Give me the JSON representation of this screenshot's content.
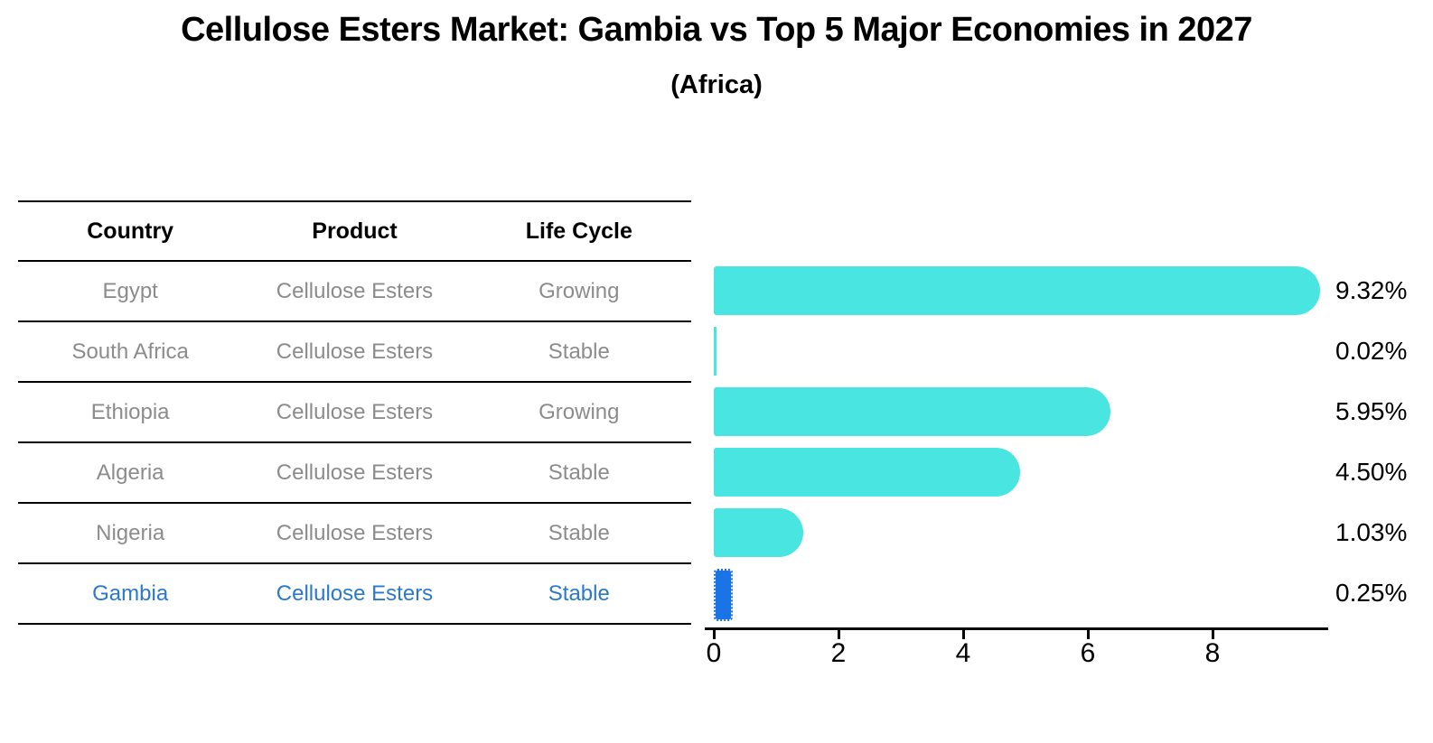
{
  "page": {
    "title": "Cellulose Esters Market: Gambia vs Top 5 Major Economies in 2027",
    "subtitle": "(Africa)"
  },
  "table": {
    "headers": [
      "Country",
      "Product",
      "Life Cycle"
    ],
    "rows": [
      {
        "country": "Egypt",
        "product": "Cellulose Esters",
        "life_cycle": "Growing"
      },
      {
        "country": "South Africa",
        "product": "Cellulose Esters",
        "life_cycle": "Stable"
      },
      {
        "country": "Ethiopia",
        "product": "Cellulose Esters",
        "life_cycle": "Growing"
      },
      {
        "country": "Algeria",
        "product": "Cellulose Esters",
        "life_cycle": "Stable"
      },
      {
        "country": "Nigeria",
        "product": "Cellulose Esters",
        "life_cycle": "Stable"
      },
      {
        "country": "Gambia",
        "product": "Cellulose Esters",
        "life_cycle": "Stable"
      }
    ]
  },
  "chart_data": {
    "type": "bar",
    "orientation": "horizontal",
    "title": "Cellulose Esters Market: Gambia vs Top 5 Major Economies in 2027 (Africa)",
    "categories": [
      "Egypt",
      "South Africa",
      "Ethiopia",
      "Algeria",
      "Nigeria",
      "Gambia"
    ],
    "values": [
      9.32,
      0.02,
      5.95,
      4.5,
      1.03,
      0.25
    ],
    "value_labels": [
      "9.32%",
      "0.02%",
      "5.95%",
      "4.50%",
      "1.03%",
      "0.25%"
    ],
    "xlabel": "",
    "ylabel": "",
    "xticks": [
      0,
      2,
      4,
      6,
      8
    ],
    "xlim": [
      0,
      9.8
    ],
    "grid": false,
    "legend": false,
    "highlight_index": 5
  },
  "colors": {
    "bar_cyan": "#48E5E1",
    "bar_blue": "#1A74E6",
    "text_blue": "#2A79CE",
    "text_gray": "#8C8C8C",
    "ink": "#000000"
  }
}
